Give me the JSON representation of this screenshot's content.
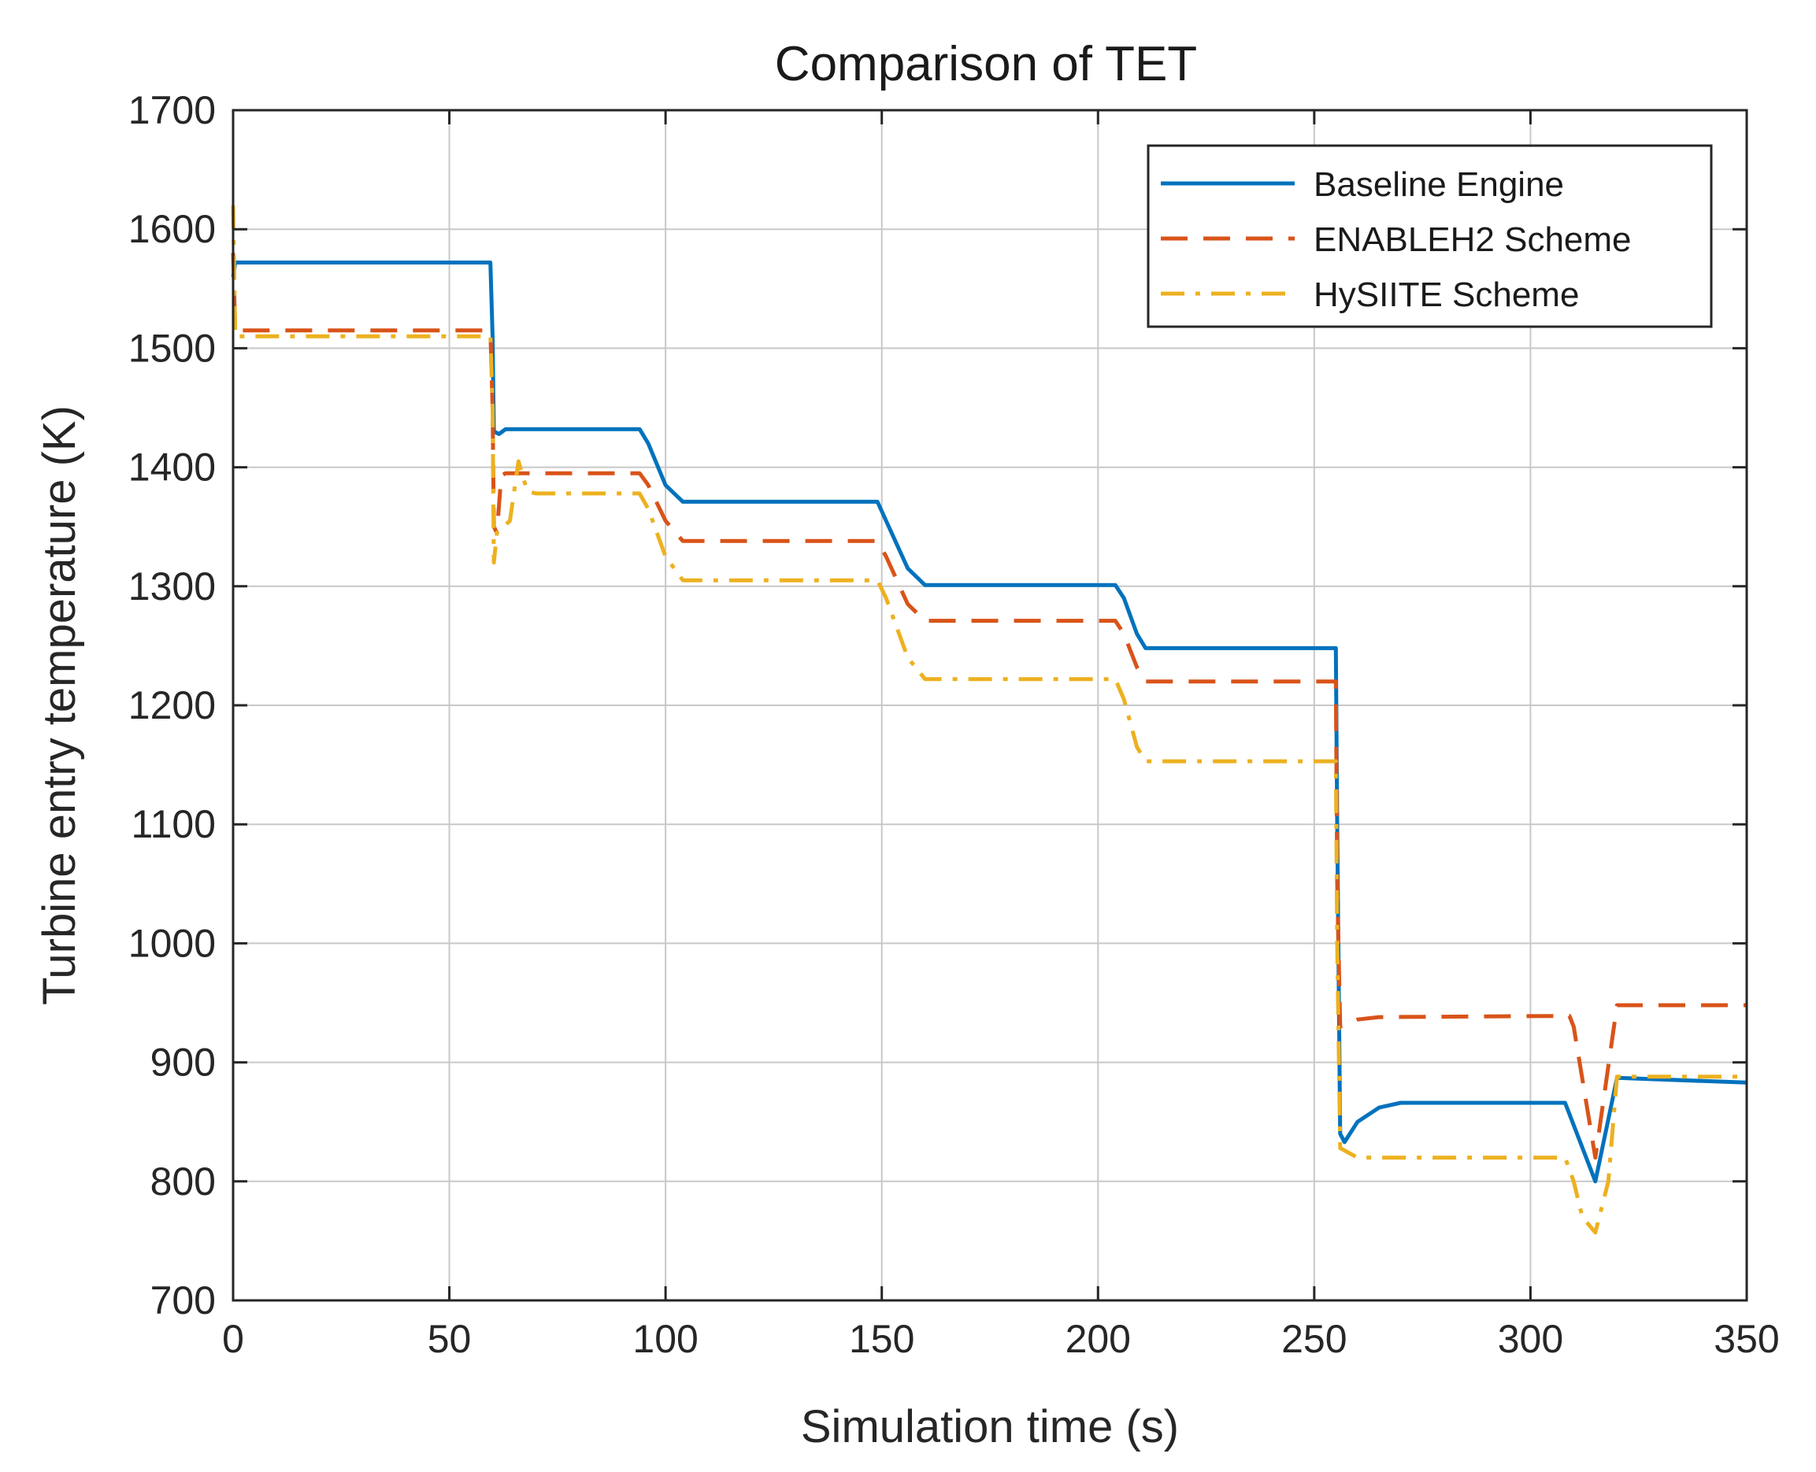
{
  "chart_data": {
    "type": "line",
    "title": "Comparison of TET",
    "xlabel": "Simulation time (s)",
    "ylabel": "Turbine entry temperature (K)",
    "xlim": [
      0,
      350
    ],
    "ylim": [
      700,
      1700
    ],
    "xticks": [
      0,
      50,
      100,
      150,
      200,
      250,
      300,
      350
    ],
    "yticks": [
      700,
      800,
      900,
      1000,
      1100,
      1200,
      1300,
      1400,
      1500,
      1600,
      1700
    ],
    "grid": true,
    "legend_position": "top-right",
    "series": [
      {
        "name": "Baseline Engine",
        "color": "#0072BD",
        "style": "solid",
        "points": [
          [
            0,
            1560
          ],
          [
            0.5,
            1572
          ],
          [
            59.5,
            1572
          ],
          [
            60,
            1510
          ],
          [
            60.3,
            1430
          ],
          [
            61.5,
            1428
          ],
          [
            63,
            1432
          ],
          [
            94,
            1432
          ],
          [
            96,
            1420
          ],
          [
            100,
            1385
          ],
          [
            104,
            1371
          ],
          [
            149,
            1371
          ],
          [
            151,
            1355
          ],
          [
            156,
            1315
          ],
          [
            160,
            1301
          ],
          [
            204,
            1301
          ],
          [
            206,
            1290
          ],
          [
            209,
            1260
          ],
          [
            211,
            1248
          ],
          [
            255,
            1248
          ],
          [
            255.3,
            1100
          ],
          [
            256,
            840
          ],
          [
            257,
            833
          ],
          [
            260,
            850
          ],
          [
            265,
            862
          ],
          [
            270,
            866
          ],
          [
            308,
            866
          ],
          [
            315,
            800
          ],
          [
            320,
            887
          ],
          [
            350,
            883
          ]
        ]
      },
      {
        "name": "ENABLEH2 Scheme",
        "color": "#D95319",
        "style": "dashed",
        "points": [
          [
            0,
            1580
          ],
          [
            0.5,
            1515
          ],
          [
            59.5,
            1515
          ],
          [
            60,
            1450
          ],
          [
            60.3,
            1350
          ],
          [
            61,
            1345
          ],
          [
            62,
            1393
          ],
          [
            63,
            1395
          ],
          [
            94,
            1395
          ],
          [
            96,
            1385
          ],
          [
            100,
            1355
          ],
          [
            104,
            1338
          ],
          [
            149,
            1338
          ],
          [
            151,
            1325
          ],
          [
            156,
            1285
          ],
          [
            160,
            1271
          ],
          [
            204,
            1271
          ],
          [
            206,
            1260
          ],
          [
            209,
            1232
          ],
          [
            211,
            1220
          ],
          [
            255,
            1220
          ],
          [
            255.3,
            1050
          ],
          [
            256,
            930
          ],
          [
            260,
            936
          ],
          [
            265,
            938
          ],
          [
            308,
            939
          ],
          [
            309,
            939
          ],
          [
            310,
            930
          ],
          [
            315,
            820
          ],
          [
            320,
            948
          ],
          [
            350,
            948
          ]
        ]
      },
      {
        "name": "HySIITE Scheme",
        "color": "#EDB120",
        "style": "dashdot",
        "points": [
          [
            0,
            1620
          ],
          [
            0.5,
            1510
          ],
          [
            59.5,
            1510
          ],
          [
            60,
            1450
          ],
          [
            60.3,
            1320
          ],
          [
            61,
            1345
          ],
          [
            64,
            1355
          ],
          [
            66,
            1405
          ],
          [
            68,
            1380
          ],
          [
            70,
            1378
          ],
          [
            94,
            1378
          ],
          [
            96,
            1365
          ],
          [
            100,
            1325
          ],
          [
            104,
            1305
          ],
          [
            149,
            1305
          ],
          [
            151,
            1290
          ],
          [
            156,
            1240
          ],
          [
            160,
            1222
          ],
          [
            204,
            1222
          ],
          [
            206,
            1205
          ],
          [
            209,
            1165
          ],
          [
            211,
            1153
          ],
          [
            255,
            1153
          ],
          [
            255.3,
            1000
          ],
          [
            256,
            828
          ],
          [
            260,
            820
          ],
          [
            270,
            820
          ],
          [
            308,
            820
          ],
          [
            310,
            800
          ],
          [
            312,
            770
          ],
          [
            315,
            757
          ],
          [
            318,
            800
          ],
          [
            320,
            888
          ],
          [
            350,
            888
          ]
        ]
      }
    ]
  }
}
